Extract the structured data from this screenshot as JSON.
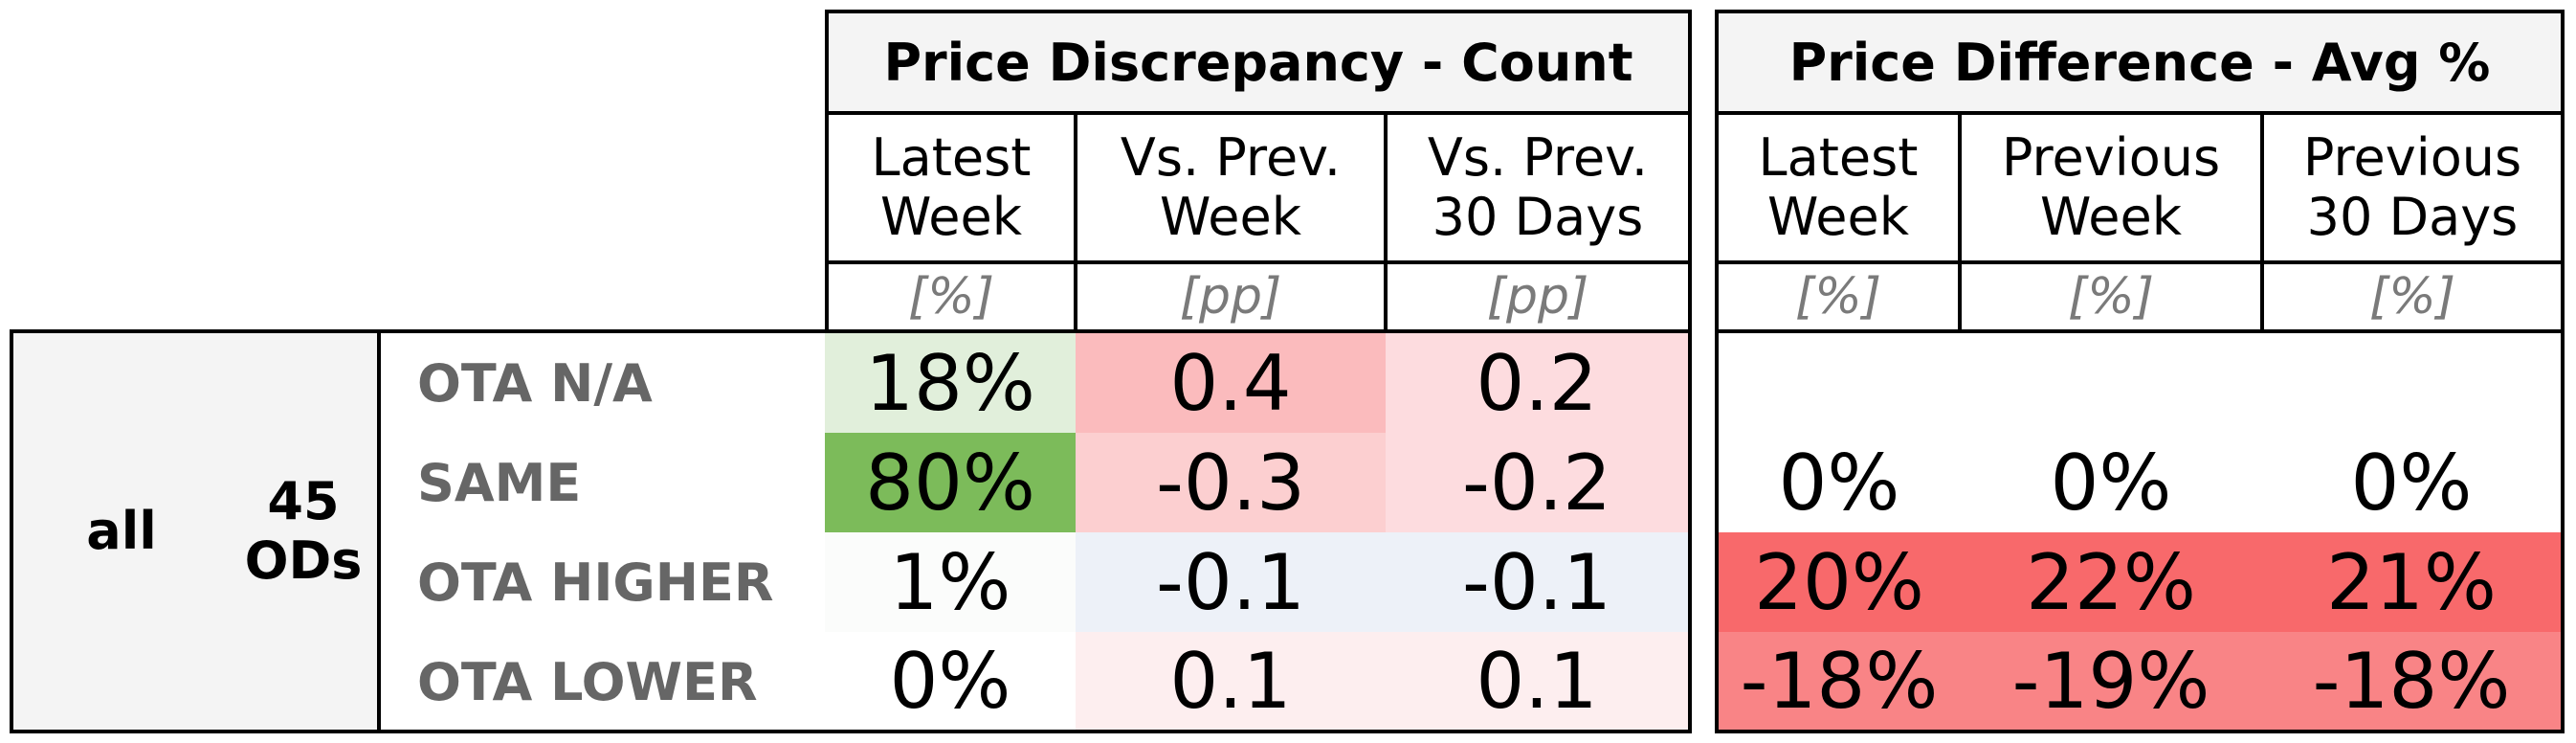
{
  "groups": {
    "discrepancy": {
      "title": "Price Discrepancy - Count",
      "columns": [
        {
          "label": "Latest Week",
          "unit": "[%]"
        },
        {
          "label": "Vs. Prev. Week",
          "unit": "[pp]"
        },
        {
          "label": "Vs. Prev. 30 Days",
          "unit": "[pp]"
        }
      ]
    },
    "difference": {
      "title": "Price Difference - Avg %",
      "columns": [
        {
          "label": "Latest Week",
          "unit": "[%]"
        },
        {
          "label": "Previous Week",
          "unit": "[%]"
        },
        {
          "label": "Previous 30 Days",
          "unit": "[%]"
        }
      ]
    }
  },
  "left": {
    "segment": "all",
    "ods": "45 ODs"
  },
  "rows": [
    {
      "label": "OTA N/A",
      "discrepancy": [
        "18%",
        "0.4",
        "0.2"
      ],
      "difference": [
        "",
        "",
        ""
      ]
    },
    {
      "label": "SAME",
      "discrepancy": [
        "80%",
        "-0.3",
        "-0.2"
      ],
      "difference": [
        "0%",
        "0%",
        "0%"
      ]
    },
    {
      "label": "OTA HIGHER",
      "discrepancy": [
        "1%",
        "-0.1",
        "-0.1"
      ],
      "difference": [
        "20%",
        "22%",
        "21%"
      ]
    },
    {
      "label": "OTA LOWER",
      "discrepancy": [
        "0%",
        "0.1",
        "0.1"
      ],
      "difference": [
        "-18%",
        "-19%",
        "-18%"
      ]
    }
  ],
  "colors": {
    "discrepancy": [
      [
        "#e1efdb",
        "#fbbbbd",
        "#fddcdf"
      ],
      [
        "#7cbb5a",
        "#fccfd0",
        "#fddcdf"
      ],
      [
        "#fbfcfb",
        "#edf1f8",
        "#edf1f8"
      ],
      [
        "#ffffff",
        "#fdeeef",
        "#fdeeef"
      ]
    ],
    "difference": [
      [
        "#ffffff",
        "#ffffff",
        "#ffffff"
      ],
      [
        "#ffffff",
        "#ffffff",
        "#ffffff"
      ],
      [
        "#f8696b",
        "#f8696b",
        "#f8696b"
      ],
      [
        "#f98486",
        "#f98486",
        "#f98486"
      ]
    ],
    "panel_bg": "#f4f4f4",
    "label_text": "#666666"
  }
}
